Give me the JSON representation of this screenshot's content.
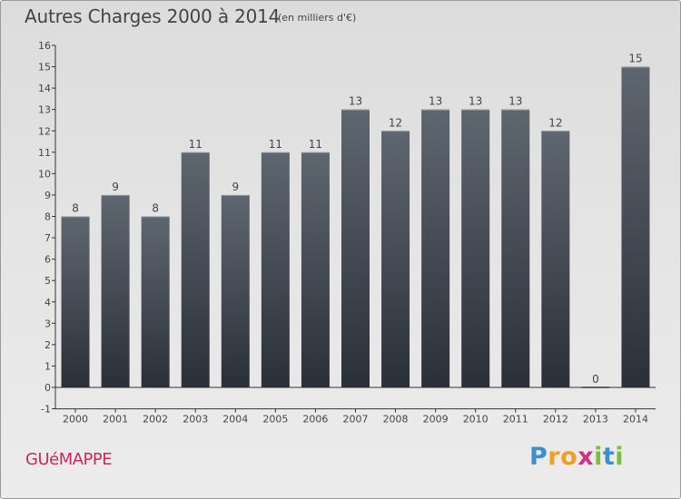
{
  "header": {
    "title": "Autres Charges 2000 à 2014",
    "subtitle": "(en milliers d'€)"
  },
  "footer": {
    "commune": "GUéMAPPE",
    "logo_letters": [
      "P",
      "r",
      "o",
      "x",
      "i",
      "t",
      "i"
    ]
  },
  "colors": {
    "bar_top": "#5e6670",
    "bar_bottom": "#2a3038",
    "axis": "#333333",
    "text": "#444444",
    "commune": "#c8285a"
  },
  "chart_data": {
    "type": "bar",
    "categories": [
      "2000",
      "2001",
      "2002",
      "2003",
      "2004",
      "2005",
      "2006",
      "2007",
      "2008",
      "2009",
      "2010",
      "2011",
      "2012",
      "2013",
      "2014"
    ],
    "values": [
      8,
      9,
      8,
      11,
      9,
      11,
      11,
      13,
      12,
      13,
      13,
      13,
      12,
      0,
      15
    ],
    "labels": [
      "8",
      "9",
      "8",
      "11",
      "9",
      "11",
      "11",
      "13",
      "12",
      "13",
      "13",
      "13",
      "12",
      "0",
      "15"
    ],
    "y_ticks": [
      "-1",
      "0",
      "1",
      "2",
      "3",
      "4",
      "5",
      "6",
      "7",
      "8",
      "9",
      "10",
      "11",
      "12",
      "13",
      "14",
      "15",
      "16"
    ],
    "title": "Autres Charges 2000 à 2014",
    "xlabel": "",
    "ylabel": "",
    "ylim": [
      -1,
      16
    ],
    "grid": false
  }
}
